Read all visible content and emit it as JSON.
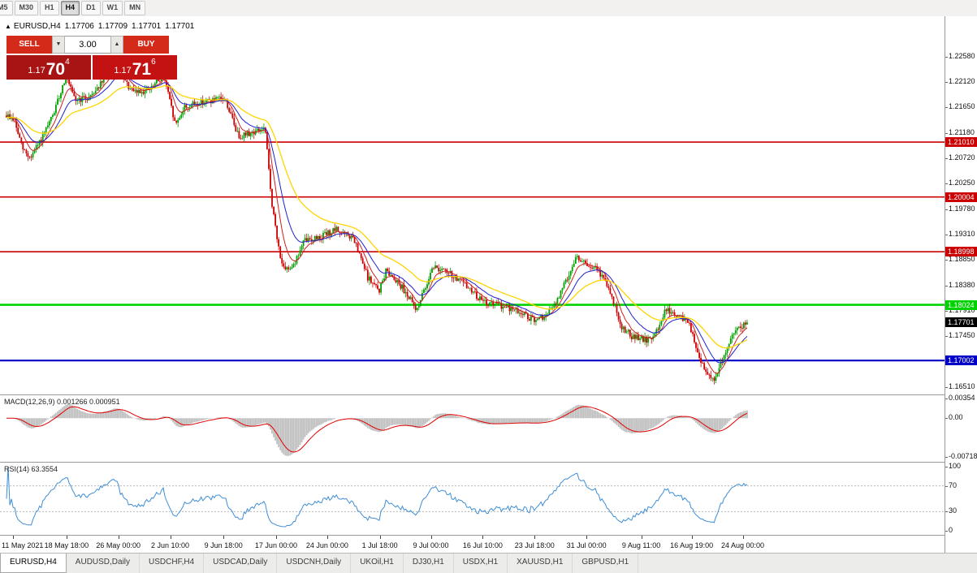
{
  "toolbar": {
    "items": [
      "M5",
      "M30",
      "H1",
      "H4",
      "D1",
      "W1",
      "MN"
    ],
    "active": "H4"
  },
  "trade_panel": {
    "sell_label": "SELL",
    "buy_label": "BUY",
    "volume": "3.00",
    "spinner_down": "▼",
    "spinner_up": "▲",
    "sell_price": {
      "prefix": "1.17",
      "big": "70",
      "sup": "4"
    },
    "buy_price": {
      "prefix": "1.17",
      "big": "71",
      "sup": "6"
    }
  },
  "tabs": [
    {
      "label": "EURUSD,H4",
      "active": true
    },
    {
      "label": "AUDUSD,Daily",
      "active": false
    },
    {
      "label": "USDCHF,H4",
      "active": false
    },
    {
      "label": "USDCAD,Daily",
      "active": false
    },
    {
      "label": "USDCNH,Daily",
      "active": false
    },
    {
      "label": "UKOil,H1",
      "active": false
    },
    {
      "label": "DJ30,H1",
      "active": false
    },
    {
      "label": "USDX,H1",
      "active": false
    },
    {
      "label": "XAUUSD,H1",
      "active": false
    },
    {
      "label": "GBPUSD,H1",
      "active": false
    }
  ],
  "chart_data": {
    "type": "candlestick",
    "symbol": "EURUSD",
    "timeframe": "H4",
    "seed": 9,
    "candle_count": 450,
    "volatility": 0.0012,
    "ohlc_line": {
      "expand_icon": "▲",
      "symbol": "EURUSD,H4",
      "open": "1.17706",
      "high": "1.17709",
      "low": "1.17701",
      "close": "1.17701"
    },
    "colors": {
      "bull": "#00a000",
      "bear": "#cc0000"
    },
    "y_axis": {
      "min": 1.1638,
      "max": 1.2332,
      "ticks": [
        "1.22580",
        "1.22120",
        "1.21650",
        "1.21180",
        "1.20720",
        "1.20250",
        "1.19780",
        "1.19310",
        "1.18850",
        "1.18380",
        "1.17910",
        "1.17450",
        "1.16980",
        "1.16510"
      ]
    },
    "x_axis": {
      "labels": [
        {
          "text": "11 May 2021",
          "pos": 0.009
        },
        {
          "text": "18 May 18:00",
          "pos": 0.081
        },
        {
          "text": "26 May 00:00",
          "pos": 0.151
        },
        {
          "text": "2 Jun 10:00",
          "pos": 0.221
        },
        {
          "text": "9 Jun 18:00",
          "pos": 0.293
        },
        {
          "text": "17 Jun 00:00",
          "pos": 0.364
        },
        {
          "text": "24 Jun 00:00",
          "pos": 0.433
        },
        {
          "text": "1 Jul 18:00",
          "pos": 0.504
        },
        {
          "text": "9 Jul 00:00",
          "pos": 0.573
        },
        {
          "text": "16 Jul 10:00",
          "pos": 0.643
        },
        {
          "text": "23 Jul 18:00",
          "pos": 0.713
        },
        {
          "text": "31 Jul 00:00",
          "pos": 0.783
        },
        {
          "text": "9 Aug 11:00",
          "pos": 0.857
        },
        {
          "text": "16 Aug 19:00",
          "pos": 0.925
        },
        {
          "text": "24 Aug 00:00",
          "pos": 0.994
        }
      ]
    },
    "price_path": [
      [
        0.0,
        1.215
      ],
      [
        0.01,
        1.2142
      ],
      [
        0.022,
        1.2088
      ],
      [
        0.032,
        1.2072
      ],
      [
        0.05,
        1.2112
      ],
      [
        0.065,
        1.2158
      ],
      [
        0.08,
        1.2222
      ],
      [
        0.092,
        1.2178
      ],
      [
        0.11,
        1.2182
      ],
      [
        0.13,
        1.2212
      ],
      [
        0.147,
        1.2248
      ],
      [
        0.155,
        1.2222
      ],
      [
        0.17,
        1.2192
      ],
      [
        0.195,
        1.2198
      ],
      [
        0.212,
        1.2226
      ],
      [
        0.228,
        1.2132
      ],
      [
        0.24,
        1.2165
      ],
      [
        0.268,
        1.2176
      ],
      [
        0.295,
        1.218
      ],
      [
        0.313,
        1.2112
      ],
      [
        0.335,
        1.212
      ],
      [
        0.349,
        1.2126
      ],
      [
        0.358,
        1.1992
      ],
      [
        0.366,
        1.1916
      ],
      [
        0.375,
        1.1862
      ],
      [
        0.39,
        1.1882
      ],
      [
        0.402,
        1.192
      ],
      [
        0.42,
        1.1926
      ],
      [
        0.436,
        1.1934
      ],
      [
        0.445,
        1.194
      ],
      [
        0.468,
        1.1924
      ],
      [
        0.488,
        1.1852
      ],
      [
        0.503,
        1.1828
      ],
      [
        0.513,
        1.1866
      ],
      [
        0.528,
        1.1846
      ],
      [
        0.542,
        1.182
      ],
      [
        0.553,
        1.1792
      ],
      [
        0.565,
        1.1832
      ],
      [
        0.575,
        1.1874
      ],
      [
        0.6,
        1.1858
      ],
      [
        0.622,
        1.1836
      ],
      [
        0.643,
        1.1808
      ],
      [
        0.67,
        1.18
      ],
      [
        0.692,
        1.179
      ],
      [
        0.713,
        1.1772
      ],
      [
        0.728,
        1.1782
      ],
      [
        0.742,
        1.1806
      ],
      [
        0.757,
        1.1852
      ],
      [
        0.77,
        1.1892
      ],
      [
        0.785,
        1.1872
      ],
      [
        0.797,
        1.1868
      ],
      [
        0.812,
        1.1838
      ],
      [
        0.83,
        1.1764
      ],
      [
        0.845,
        1.1744
      ],
      [
        0.86,
        1.1738
      ],
      [
        0.873,
        1.174
      ],
      [
        0.89,
        1.1794
      ],
      [
        0.908,
        1.178
      ],
      [
        0.922,
        1.177
      ],
      [
        0.932,
        1.1714
      ],
      [
        0.947,
        1.1676
      ],
      [
        0.957,
        1.1668
      ],
      [
        0.968,
        1.1706
      ],
      [
        0.978,
        1.1744
      ],
      [
        0.99,
        1.1762
      ],
      [
        1.0,
        1.177
      ]
    ],
    "moving_averages": [
      {
        "name": "ma-fast",
        "period": 8,
        "color": "#d01f1f",
        "width": 1
      },
      {
        "name": "ma-medium",
        "period": 18,
        "color": "#1f1fd0",
        "width": 1
      },
      {
        "name": "ma-slow",
        "period": 42,
        "color": "#ffd400",
        "width": 1.3
      }
    ],
    "horizontal_lines": [
      {
        "price": 1.2101,
        "label": "1.21010",
        "color": "#cc0000",
        "width": 1.6
      },
      {
        "price": 1.20004,
        "label": "1.20004",
        "color": "#cc0000",
        "width": 1.6
      },
      {
        "price": 1.18998,
        "label": "1.18998",
        "color": "#cc0000",
        "width": 1.6
      },
      {
        "price": 1.18024,
        "label": "1.18024",
        "color": "#00d200",
        "width": 2.6
      },
      {
        "price": 1.17002,
        "label": "1.17002",
        "color": "#0000c8",
        "width": 2.2
      }
    ],
    "current_price": {
      "value": 1.17701,
      "label": "1.17701",
      "bg": "#000000"
    },
    "indicators": [
      {
        "type": "MACD",
        "label": "MACD(12,26,9) 0.001266 0.000951",
        "params": [
          12,
          26,
          9
        ],
        "values": {
          "macd": "0.001266",
          "signal": "0.000951"
        },
        "axis": [
          {
            "v": 0.00354,
            "label": "0.00354"
          },
          {
            "v": 0,
            "label": "0.00"
          },
          {
            "v": -0.00718,
            "label": "-0.00718"
          }
        ],
        "range": [
          -0.008,
          0.0042
        ],
        "histogram_color": "#c0c0c0",
        "signal_color": "#e00000"
      },
      {
        "type": "RSI",
        "label": "RSI(14) 63.3554",
        "period": 14,
        "value": 63.3554,
        "axis": [
          {
            "v": 100,
            "label": "100"
          },
          {
            "v": 70,
            "label": "70"
          },
          {
            "v": 30,
            "label": "30"
          },
          {
            "v": 0,
            "label": "0"
          }
        ],
        "range": [
          -6,
          106
        ],
        "levels": [
          70,
          30
        ],
        "level_color": "#b8b8b8",
        "line_color": "#3e8ed6"
      }
    ]
  }
}
